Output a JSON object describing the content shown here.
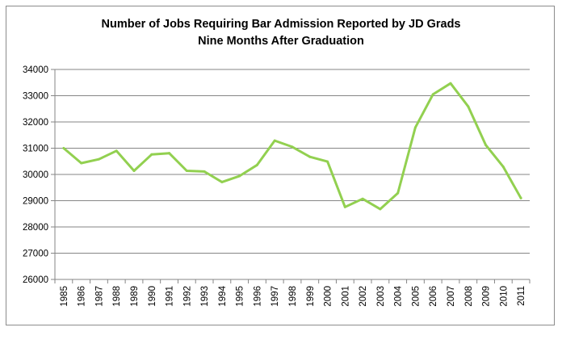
{
  "chart_data": {
    "type": "line",
    "title_line1": "Number of Jobs Requiring Bar Admission Reported by JD Grads",
    "title_line2": "Nine Months After Graduation",
    "xlabel": "",
    "ylabel": "",
    "ylim": [
      26000,
      34000
    ],
    "y_ticks": [
      26000,
      27000,
      28000,
      29000,
      30000,
      31000,
      32000,
      33000,
      34000
    ],
    "grid": true,
    "legend": "none",
    "line_color": "#92d050",
    "categories": [
      "1985",
      "1986",
      "1987",
      "1988",
      "1989",
      "1990",
      "1991",
      "1992",
      "1993",
      "1994",
      "1995",
      "1996",
      "1997",
      "1998",
      "1999",
      "2000",
      "2001",
      "2002",
      "2003",
      "2004",
      "2005",
      "2006",
      "2007",
      "2008",
      "2009",
      "2010",
      "2011"
    ],
    "values": [
      31000,
      30430,
      30580,
      30900,
      30140,
      30760,
      30810,
      30140,
      30110,
      29710,
      29940,
      30360,
      31290,
      31050,
      30670,
      30490,
      28760,
      29070,
      28680,
      29290,
      31790,
      33050,
      33470,
      32590,
      31120,
      30290,
      29100
    ]
  }
}
